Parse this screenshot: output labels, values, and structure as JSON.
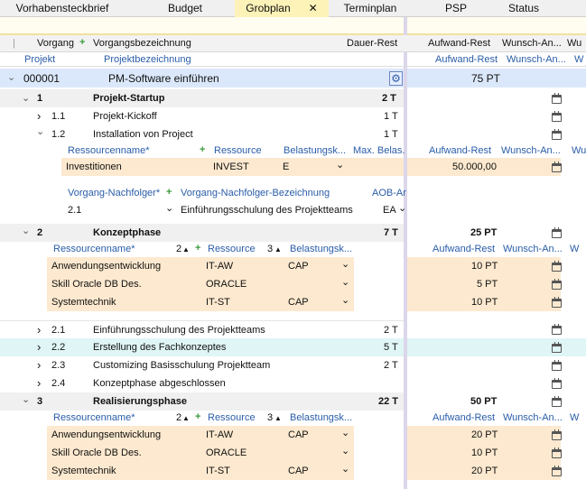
{
  "tabs": [
    "Vorhabensteckbrief",
    "Budget",
    "Grobplan",
    "Terminplan",
    "PSP",
    "Status"
  ],
  "tab_close": "✕",
  "header": {
    "vorgang": "Vorgang",
    "vorgangsbezeichnung": "Vorgangsbezeichnung",
    "dauer_rest": "Dauer-Rest",
    "aufwand_rest": "Aufwand-Rest",
    "wunsch_an": "Wunsch-An...",
    "w": "Wu"
  },
  "subheader": {
    "projekt": "Projekt",
    "projektbezeichnung": "Projektbezeichnung",
    "aufwand_rest": "Aufwand-Rest",
    "wunsch_an": "Wunsch-An...",
    "w": "W"
  },
  "project": {
    "id": "000001",
    "name": "PM-Software einführen",
    "aufwand": "75 PT"
  },
  "phase1": {
    "nr": "1",
    "name": "Projekt-Startup",
    "dauer": "2 T"
  },
  "task_1_1": {
    "nr": "1.1",
    "name": "Projekt-Kickoff",
    "dauer": "1 T"
  },
  "task_1_2": {
    "nr": "1.2",
    "name": "Installation von Project",
    "dauer": "1 T"
  },
  "res_header_1": {
    "ressourcenname": "Ressourcenname*",
    "ressource": "Ressource",
    "belastungsk": "Belastungsk...",
    "max_belas": "Max. Belas.",
    "aufwand_rest": "Aufwand-Rest",
    "wunsch_an": "Wunsch-An...",
    "w": "Wu"
  },
  "res_1_2": {
    "name": "Investitionen",
    "ressource": "INVEST",
    "belastung": "E",
    "aufwand": "50.000,00"
  },
  "nachfolger_header": {
    "nachfolger": "Vorgang-Nachfolger*",
    "bezeichnung": "Vorgang-Nachfolger-Bezeichnung",
    "aob": "AOB-Ar"
  },
  "nachfolger_row": {
    "nr": "2.1",
    "name": "Einführungsschulung des Projektteams",
    "aob": "EA"
  },
  "phase2": {
    "nr": "2",
    "name": "Konzeptphase",
    "dauer": "7 T",
    "aufwand": "25 PT"
  },
  "res_header_2": {
    "ressourcenname": "Ressourcenname*",
    "sort2": "2",
    "ressource": "Ressource",
    "sort3": "3",
    "belastungsk": "Belastungsk...",
    "aufwand_rest": "Aufwand-Rest",
    "wunsch_an": "Wunsch-An...",
    "w": "W"
  },
  "res_phase2": [
    {
      "name": "Anwendungsentwicklung",
      "ressource": "IT-AW",
      "belastung": "CAP",
      "aufwand": "10 PT"
    },
    {
      "name": "Skill Oracle DB Des.",
      "ressource": "ORACLE",
      "belastung": "",
      "aufwand": "5 PT"
    },
    {
      "name": "Systemtechnik",
      "ressource": "IT-ST",
      "belastung": "CAP",
      "aufwand": "10 PT"
    }
  ],
  "tasks_phase2": [
    {
      "nr": "2.1",
      "name": "Einführungsschulung des Projektteams",
      "dauer": "2 T"
    },
    {
      "nr": "2.2",
      "name": "Erstellung des Fachkonzeptes",
      "dauer": "5 T"
    },
    {
      "nr": "2.3",
      "name": "Customizing Basisschulung Projektteam",
      "dauer": "2 T"
    },
    {
      "nr": "2.4",
      "name": "Konzeptphase abgeschlossen",
      "dauer": ""
    }
  ],
  "phase3": {
    "nr": "3",
    "name": "Realisierungsphase",
    "dauer": "22 T",
    "aufwand": "50 PT"
  },
  "res_header_3": {
    "ressourcenname": "Ressourcenname*",
    "sort2": "2",
    "ressource": "Ressource",
    "sort3": "3",
    "belastungsk": "Belastungsk...",
    "aufwand_rest": "Aufwand-Rest",
    "wunsch_an": "Wunsch-An...",
    "w": "W"
  },
  "res_phase3": [
    {
      "name": "Anwendungsentwicklung",
      "ressource": "IT-AW",
      "belastung": "CAP",
      "aufwand": "20 PT"
    },
    {
      "name": "Skill Oracle DB Des.",
      "ressource": "ORACLE",
      "belastung": "",
      "aufwand": "10 PT"
    },
    {
      "name": "Systemtechnik",
      "ressource": "IT-ST",
      "belastung": "CAP",
      "aufwand": "20 PT"
    }
  ],
  "icons": {
    "expand": "›",
    "collapse": "⌄",
    "plus": "+",
    "sort": "▲",
    "dropdown": "⌄",
    "gear": "⚙"
  },
  "colors": {
    "active_tab": "#fdf2b8",
    "project_row": "#dbe8fb",
    "resource_bg": "#fde9cf",
    "selected_row": "#dff5f6",
    "phase_bg": "#f0f0f0",
    "link_blue": "#2a5da8"
  }
}
